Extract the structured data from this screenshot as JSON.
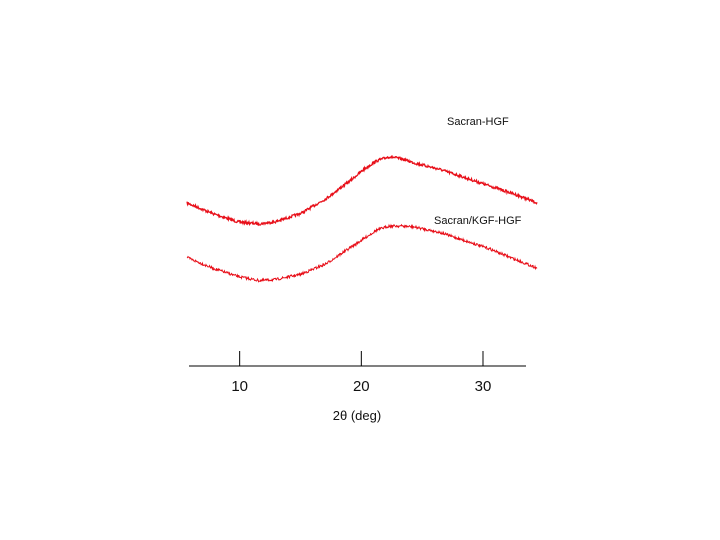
{
  "chart_data": {
    "type": "line",
    "xlabel": "2θ (deg)",
    "ylabel": "",
    "xlim": [
      6,
      33.7
    ],
    "ylim": [
      0,
      100
    ],
    "xticks": [
      10,
      20,
      30
    ],
    "grid": false,
    "legend": "none",
    "colors": {
      "series_top": "#e8101a",
      "series_bottom": "#e8101a",
      "axis": "#000000"
    },
    "series": [
      {
        "name": "Sacran-HGF",
        "x": [
          6,
          8,
          10,
          11.7,
          13,
          15,
          17,
          19,
          20,
          21,
          22,
          23,
          24,
          26,
          28,
          30,
          32,
          33.7
        ],
        "y": [
          51,
          46,
          42,
          41,
          42,
          46,
          53,
          62,
          67,
          71,
          73,
          72,
          70,
          67,
          63,
          59,
          55,
          51
        ]
      },
      {
        "name": "Sacran/KGF-HGF",
        "x": [
          6,
          8,
          10,
          11.7,
          13,
          15,
          17,
          19,
          20,
          21,
          22,
          23,
          24,
          26,
          28,
          30,
          32,
          33.7
        ],
        "y": [
          25,
          20,
          16,
          14,
          14.5,
          17,
          22,
          30,
          34,
          38,
          40,
          40,
          39.5,
          37,
          33,
          29,
          24,
          20
        ]
      }
    ]
  }
}
